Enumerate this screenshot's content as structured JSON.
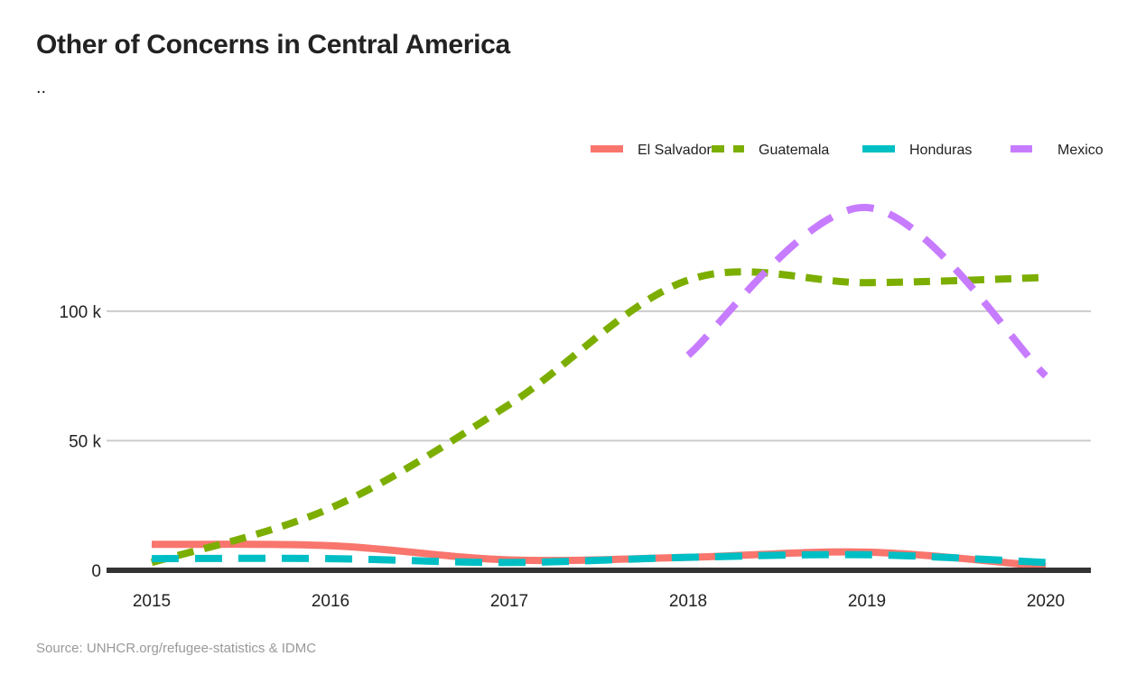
{
  "title": "Other of Concerns in Central America",
  "subtitle": "..",
  "source": "Source: UNHCR.org/refugee-statistics & IDMC",
  "chart_data": {
    "type": "line",
    "title": "Other of Concerns in Central America",
    "subtitle": "..",
    "xlabel": "",
    "ylabel": "",
    "x": [
      2015,
      2016,
      2017,
      2018,
      2019,
      2020
    ],
    "xlim": [
      2015,
      2020
    ],
    "ylim": [
      0,
      140000
    ],
    "x_tick_labels": [
      "2015",
      "2016",
      "2017",
      "2018",
      "2019",
      "2020"
    ],
    "y_ticks": [
      0,
      50000,
      100000
    ],
    "y_tick_labels": [
      "0",
      "50 k",
      "100 k"
    ],
    "grid": "horizontal",
    "legend_position": "top-right",
    "series": [
      {
        "name": "El Salvador",
        "color": "#F8766D",
        "dash": "solid",
        "x": [
          2015,
          2016,
          2017,
          2018,
          2019,
          2020
        ],
        "values": [
          10000,
          9500,
          4000,
          5000,
          7000,
          1500
        ]
      },
      {
        "name": "Guatemala",
        "color": "#7CAE00",
        "dash": "dashed",
        "x": [
          2015,
          2016,
          2017,
          2018,
          2019,
          2020
        ],
        "values": [
          3000,
          24000,
          64000,
          112000,
          111000,
          113000
        ]
      },
      {
        "name": "Honduras",
        "color": "#00BFC4",
        "dash": "longdash",
        "x": [
          2015,
          2016,
          2017,
          2018,
          2019,
          2020
        ],
        "values": [
          4500,
          4500,
          3000,
          5000,
          6000,
          3000
        ]
      },
      {
        "name": "Mexico",
        "color": "#C77CFF",
        "dash": "longdash",
        "x": [
          2018,
          2019,
          2020
        ],
        "values": [
          83000,
          140000,
          75000
        ]
      }
    ]
  }
}
